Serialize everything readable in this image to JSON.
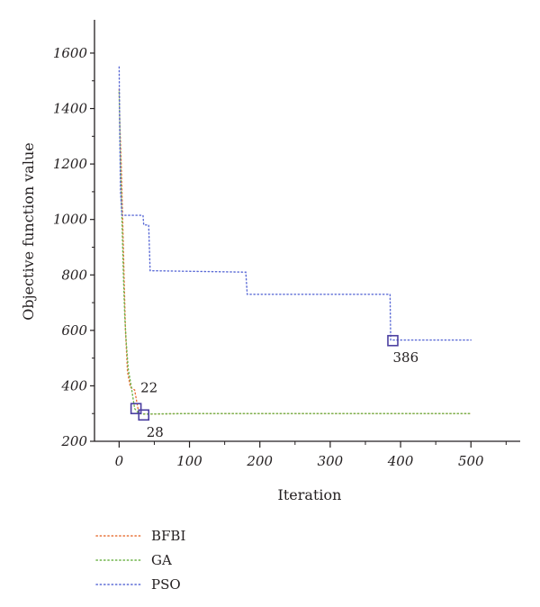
{
  "chart_data": {
    "type": "line",
    "xlabel": "Iteration",
    "ylabel": "Objective function value",
    "xlim": [
      -35,
      570
    ],
    "ylim": [
      200,
      1720
    ],
    "x_ticks": [
      0,
      100,
      200,
      300,
      400,
      500
    ],
    "y_ticks": [
      200,
      400,
      600,
      800,
      1000,
      1200,
      1400,
      1600
    ],
    "grid": false,
    "legend_position": "bottom-left, below plot",
    "series": [
      {
        "name": "BFBI",
        "color": "#e8743b",
        "style": "dotted",
        "points": [
          [
            0,
            1470
          ],
          [
            1,
            1350
          ],
          [
            3,
            1200
          ],
          [
            5,
            1000
          ],
          [
            7,
            800
          ],
          [
            9,
            600
          ],
          [
            12,
            450
          ],
          [
            16,
            395
          ],
          [
            22,
            385
          ],
          [
            28,
            300
          ],
          [
            40,
            298
          ],
          [
            100,
            300
          ],
          [
            500,
            300
          ]
        ]
      },
      {
        "name": "GA",
        "color": "#6fb44a",
        "style": "dotted",
        "points": [
          [
            0,
            1460
          ],
          [
            2,
            1200
          ],
          [
            4,
            1000
          ],
          [
            6,
            800
          ],
          [
            8,
            650
          ],
          [
            10,
            560
          ],
          [
            13,
            460
          ],
          [
            17,
            400
          ],
          [
            22,
            318
          ],
          [
            28,
            300
          ],
          [
            35,
            298
          ],
          [
            100,
            300
          ],
          [
            500,
            300
          ]
        ]
      },
      {
        "name": "PSO",
        "color": "#5b6bd6",
        "style": "dotted",
        "points": [
          [
            0,
            1550
          ],
          [
            1,
            1300
          ],
          [
            2,
            1100
          ],
          [
            4,
            1015
          ],
          [
            34,
            1015
          ],
          [
            35,
            980
          ],
          [
            42,
            980
          ],
          [
            44,
            815
          ],
          [
            180,
            810
          ],
          [
            182,
            730
          ],
          [
            385,
            730
          ],
          [
            386,
            565
          ],
          [
            500,
            565
          ]
        ]
      }
    ],
    "markers": [
      {
        "label": "22",
        "x": 24,
        "y": 318,
        "color": "#4b3fa0"
      },
      {
        "label": "28",
        "x": 35,
        "y": 295,
        "color": "#4b3fa0"
      },
      {
        "label": "386",
        "x": 389,
        "y": 563,
        "color": "#4b3fa0"
      }
    ]
  }
}
